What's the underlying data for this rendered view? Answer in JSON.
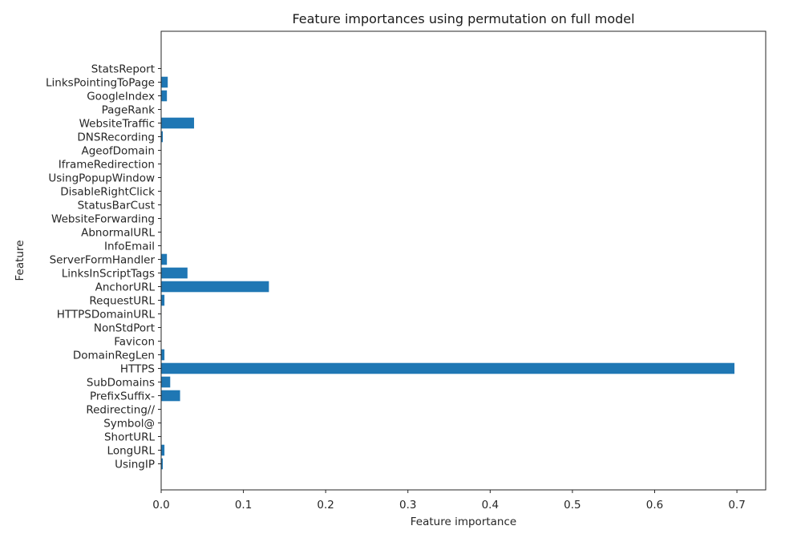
{
  "chart_data": {
    "type": "bar",
    "orientation": "horizontal",
    "title": "Feature importances using permutation on full model",
    "xlabel": "Feature importance",
    "ylabel": "Feature",
    "xlim": [
      0,
      0.735
    ],
    "xticks": [
      "0.0",
      "0.1",
      "0.2",
      "0.3",
      "0.4",
      "0.5",
      "0.6",
      "0.7"
    ],
    "bar_color": "#1f77b4",
    "grid": false,
    "categories": [
      "UsingIP",
      "LongURL",
      "ShortURL",
      "Symbol@",
      "Redirecting//",
      "PrefixSuffix-",
      "SubDomains",
      "HTTPS",
      "DomainRegLen",
      "Favicon",
      "NonStdPort",
      "HTTPSDomainURL",
      "RequestURL",
      "AnchorURL",
      "LinksInScriptTags",
      "ServerFormHandler",
      "InfoEmail",
      "AbnormalURL",
      "WebsiteForwarding",
      "StatusBarCust",
      "DisableRightClick",
      "UsingPopupWindow",
      "IframeRedirection",
      "AgeofDomain",
      "DNSRecording",
      "WebsiteTraffic",
      "PageRank",
      "GoogleIndex",
      "LinksPointingToPage",
      "StatsReport"
    ],
    "values": [
      0.002,
      0.004,
      0.0,
      0.0005,
      0.0,
      0.023,
      0.011,
      0.697,
      0.004,
      0.0,
      0.0,
      0.0005,
      0.004,
      0.131,
      0.032,
      0.007,
      0.0,
      0.0,
      0.0,
      0.0,
      0.0,
      0.0,
      0.0,
      0.0,
      0.002,
      0.04,
      0.0,
      0.007,
      0.008,
      0.0
    ]
  }
}
